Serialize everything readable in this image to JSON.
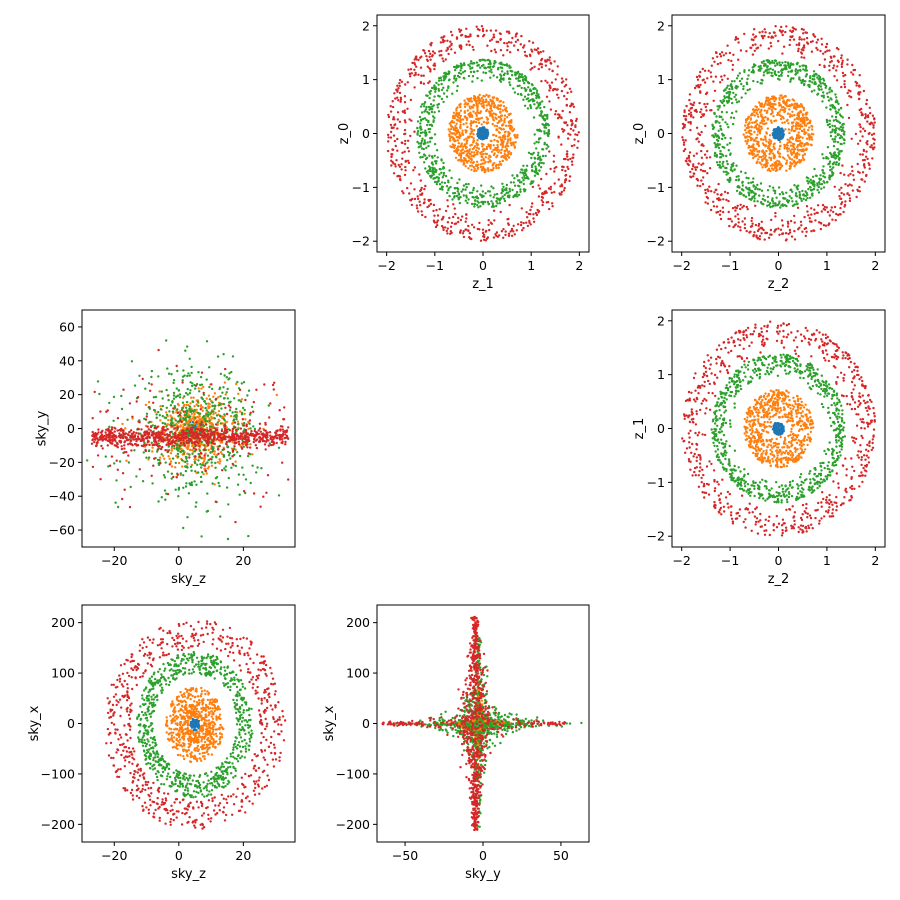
{
  "figure": {
    "title": ""
  },
  "colors": {
    "series_blue": "#1f77b4",
    "series_orange": "#ff7f0e",
    "series_green": "#2ca02c",
    "series_red": "#d62728"
  },
  "chart_data": [
    {
      "type": "scatter",
      "xlabel": "z_1",
      "ylabel": "z_0",
      "xlim": [
        -2.2,
        2.2
      ],
      "ylim": [
        -2.2,
        2.2
      ],
      "xticks": [
        -2,
        -1,
        0,
        1,
        2
      ],
      "xtick_labels": [
        "−2",
        "−1",
        "0",
        "1",
        "2"
      ],
      "yticks": [
        -2,
        -1,
        0,
        1,
        2
      ],
      "ytick_labels": [
        "−2",
        "−1",
        "0",
        "1",
        "2"
      ],
      "series": [
        {
          "name": "blue",
          "color": "#1f77b4",
          "pattern": "ring",
          "r": [
            0,
            0.12
          ],
          "cx": 0,
          "cy": 0,
          "points": 120
        },
        {
          "name": "orange",
          "color": "#ff7f0e",
          "pattern": "ring",
          "r": [
            0.15,
            0.72
          ],
          "cx": 0,
          "cy": 0,
          "points": 650
        },
        {
          "name": "green",
          "color": "#2ca02c",
          "pattern": "ring",
          "r": [
            0.95,
            1.38
          ],
          "cx": 0,
          "cy": 0,
          "points": 750
        },
        {
          "name": "red",
          "color": "#d62728",
          "pattern": "ring",
          "r": [
            1.4,
            2.0
          ],
          "cx": 0,
          "cy": 0,
          "points": 650
        }
      ]
    },
    {
      "type": "scatter",
      "xlabel": "z_2",
      "ylabel": "z_0",
      "xlim": [
        -2.2,
        2.2
      ],
      "ylim": [
        -2.2,
        2.2
      ],
      "xticks": [
        -2,
        -1,
        0,
        1,
        2
      ],
      "xtick_labels": [
        "−2",
        "−1",
        "0",
        "1",
        "2"
      ],
      "yticks": [
        -2,
        -1,
        0,
        1,
        2
      ],
      "ytick_labels": [
        "−2",
        "−1",
        "0",
        "1",
        "2"
      ],
      "series": [
        {
          "name": "blue",
          "color": "#1f77b4",
          "pattern": "ring",
          "r": [
            0,
            0.12
          ],
          "cx": 0,
          "cy": 0,
          "points": 120
        },
        {
          "name": "orange",
          "color": "#ff7f0e",
          "pattern": "ring",
          "r": [
            0.15,
            0.72
          ],
          "cx": 0,
          "cy": 0,
          "points": 650
        },
        {
          "name": "green",
          "color": "#2ca02c",
          "pattern": "ring",
          "r": [
            0.95,
            1.38
          ],
          "cx": 0,
          "cy": 0,
          "points": 750
        },
        {
          "name": "red",
          "color": "#d62728",
          "pattern": "ring",
          "r": [
            1.4,
            2.0
          ],
          "cx": 0,
          "cy": 0,
          "points": 650
        }
      ]
    },
    {
      "type": "scatter",
      "xlabel": "sky_z",
      "ylabel": "sky_y",
      "xlim": [
        -30,
        36
      ],
      "ylim": [
        -70,
        70
      ],
      "xticks": [
        -20,
        0,
        20
      ],
      "xtick_labels": [
        "−20",
        "0",
        "20"
      ],
      "yticks": [
        -60,
        -40,
        -20,
        0,
        20,
        40,
        60
      ],
      "ytick_labels": [
        "−60",
        "−40",
        "−20",
        "0",
        "20",
        "40",
        "60"
      ],
      "series": [
        {
          "name": "blue",
          "color": "#1f77b4",
          "pattern": "blob",
          "cx": 5,
          "cy": -1,
          "sx": 1.5,
          "sy": 3,
          "points": 80
        },
        {
          "name": "orange",
          "color": "#ff7f0e",
          "pattern": "blob",
          "cx": 5,
          "cy": -2,
          "sx": 7,
          "sy": 10,
          "points": 600
        },
        {
          "name": "green",
          "color": "#2ca02c",
          "pattern": "blob",
          "cx": 5,
          "cy": -2,
          "sx": 10,
          "sy": 18,
          "points": 600
        },
        {
          "name": "red",
          "color": "#d62728",
          "pattern": "band",
          "x": [
            -27,
            34
          ],
          "cy": -5,
          "band": 6,
          "tail": 20,
          "points": 900
        }
      ]
    },
    {
      "type": "scatter",
      "xlabel": "z_2",
      "ylabel": "z_1",
      "xlim": [
        -2.2,
        2.2
      ],
      "ylim": [
        -2.2,
        2.2
      ],
      "xticks": [
        -2,
        -1,
        0,
        1,
        2
      ],
      "xtick_labels": [
        "−2",
        "−1",
        "0",
        "1",
        "2"
      ],
      "yticks": [
        -2,
        -1,
        0,
        1,
        2
      ],
      "ytick_labels": [
        "−2",
        "−1",
        "0",
        "1",
        "2"
      ],
      "series": [
        {
          "name": "blue",
          "color": "#1f77b4",
          "pattern": "ring",
          "r": [
            0,
            0.12
          ],
          "cx": 0,
          "cy": 0,
          "points": 120
        },
        {
          "name": "orange",
          "color": "#ff7f0e",
          "pattern": "ring",
          "r": [
            0.15,
            0.72
          ],
          "cx": 0,
          "cy": 0,
          "points": 650
        },
        {
          "name": "green",
          "color": "#2ca02c",
          "pattern": "ring",
          "r": [
            0.95,
            1.38
          ],
          "cx": 0,
          "cy": 0,
          "points": 750
        },
        {
          "name": "red",
          "color": "#d62728",
          "pattern": "ring",
          "r": [
            1.4,
            2.0
          ],
          "cx": 0,
          "cy": 0,
          "points": 650
        }
      ]
    },
    {
      "type": "scatter",
      "xlabel": "sky_z",
      "ylabel": "sky_x",
      "xlim": [
        -30,
        36
      ],
      "ylim": [
        -235,
        235
      ],
      "xticks": [
        -20,
        0,
        20
      ],
      "xtick_labels": [
        "−20",
        "0",
        "20"
      ],
      "yticks": [
        -200,
        -100,
        0,
        100,
        200
      ],
      "ytick_labels": [
        "−200",
        "−100",
        "0",
        "100",
        "200"
      ],
      "series": [
        {
          "name": "blue",
          "color": "#1f77b4",
          "pattern": "ellipse",
          "cx": 5,
          "cy": -2,
          "rx": [
            0,
            1.5
          ],
          "ry": [
            0,
            12
          ],
          "points": 100
        },
        {
          "name": "orange",
          "color": "#ff7f0e",
          "pattern": "ellipse",
          "cx": 5,
          "cy": -2,
          "rx": [
            2,
            9
          ],
          "ry": [
            15,
            75
          ],
          "points": 650
        },
        {
          "name": "green",
          "color": "#2ca02c",
          "pattern": "ellipse",
          "cx": 5,
          "cy": -2,
          "rx": [
            13,
            18
          ],
          "ry": [
            100,
            145
          ],
          "points": 750
        },
        {
          "name": "red",
          "color": "#d62728",
          "pattern": "ellipse",
          "cx": 5,
          "cy": -2,
          "rx": [
            20,
            28
          ],
          "ry": [
            150,
            210
          ],
          "points": 650
        }
      ]
    },
    {
      "type": "scatter",
      "xlabel": "sky_y",
      "ylabel": "sky_x",
      "xlim": [
        -68,
        68
      ],
      "ylim": [
        -235,
        235
      ],
      "xticks": [
        -50,
        0,
        50
      ],
      "xtick_labels": [
        "−50",
        "0",
        "50"
      ],
      "yticks": [
        -200,
        -100,
        0,
        100,
        200
      ],
      "ytick_labels": [
        "−200",
        "−100",
        "0",
        "100",
        "200"
      ],
      "series": [
        {
          "name": "blue",
          "color": "#1f77b4",
          "pattern": "blob",
          "cx": -3,
          "cy": -2,
          "sx": 2,
          "sy": 10,
          "points": 80
        },
        {
          "name": "orange",
          "color": "#ff7f0e",
          "pattern": "star",
          "cx": -3,
          "cy": 0,
          "wx": 18,
          "wy": 60,
          "points": 650
        },
        {
          "name": "green",
          "color": "#2ca02c",
          "pattern": "star",
          "cx": -3,
          "cy": 0,
          "wx": 40,
          "wy": 150,
          "points": 650
        },
        {
          "name": "red",
          "color": "#d62728",
          "pattern": "spike",
          "cx": -5,
          "cy": 0,
          "len": 212,
          "wx": 60,
          "points": 850
        }
      ]
    }
  ]
}
